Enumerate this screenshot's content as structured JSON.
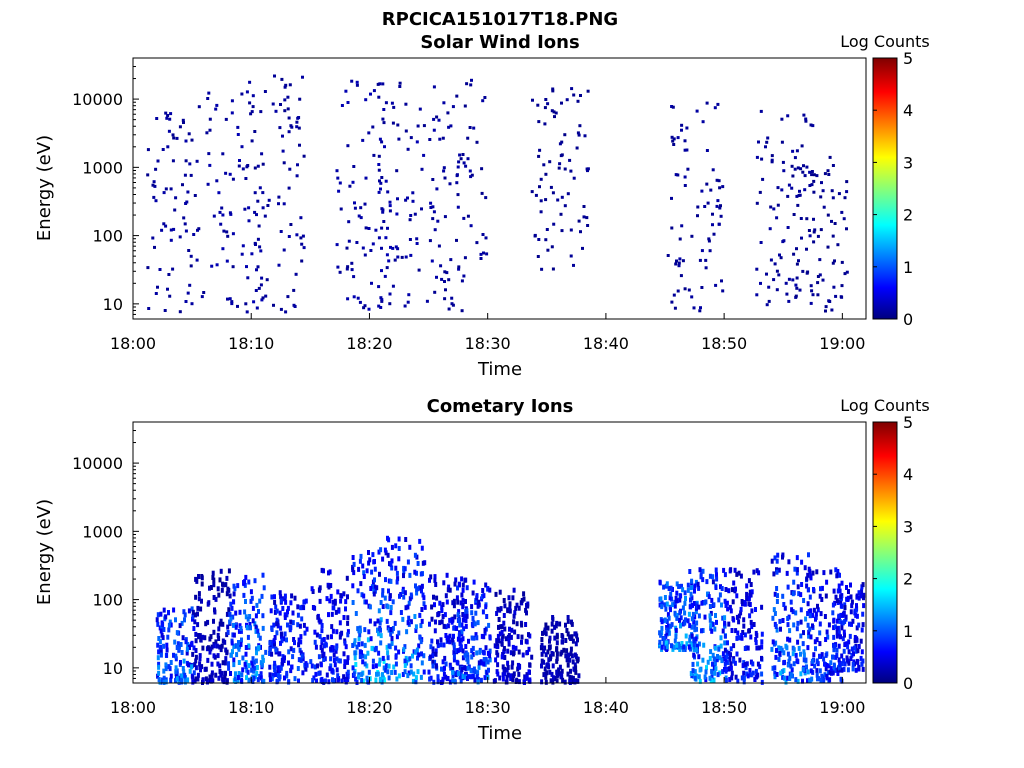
{
  "figure_title": "RPCICA151017T18.PNG",
  "chart_data": [
    {
      "type": "heatmap",
      "title": "Solar Wind Ions",
      "xlabel": "Time",
      "ylabel": "Energy (eV)",
      "x_range": [
        "18:00",
        "19:02"
      ],
      "x_ticks": [
        "18:00",
        "18:10",
        "18:20",
        "18:30",
        "18:40",
        "18:50",
        "19:00"
      ],
      "y_scale": "log",
      "y_range": [
        6,
        40000
      ],
      "y_ticks": [
        "10",
        "100",
        "1000",
        "10000"
      ],
      "colorbar": {
        "label": "Log Counts",
        "range": [
          0,
          5
        ],
        "ticks": [
          "0",
          "1",
          "2",
          "3",
          "4",
          "5"
        ],
        "colormap": "jet"
      },
      "grid": false,
      "data_description": "sparse scattered counts, mostly log count 0 (dark blue), 18:02–18:59, 6–30000 eV",
      "activity_clusters": [
        {
          "t_min": 3.5,
          "e_min": 8,
          "e_max": 9000,
          "level": 0.15
        },
        {
          "t_min": 8.5,
          "e_min": 8,
          "e_max": 20000,
          "level": 0.2
        },
        {
          "t_min": 12.0,
          "e_min": 8,
          "e_max": 25000,
          "level": 0.15
        },
        {
          "t_min": 19.5,
          "e_min": 8,
          "e_max": 20000,
          "level": 0.2
        },
        {
          "t_min": 23.0,
          "e_min": 8,
          "e_max": 20000,
          "level": 0.2
        },
        {
          "t_min": 27.5,
          "e_min": 8,
          "e_max": 20000,
          "level": 0.15
        },
        {
          "t_min": 36.0,
          "e_min": 30,
          "e_max": 15000,
          "level": 0.1
        },
        {
          "t_min": 47.5,
          "e_min": 8,
          "e_max": 10000,
          "level": 0.15
        },
        {
          "t_min": 55.0,
          "e_min": 8,
          "e_max": 9000,
          "level": 0.15
        },
        {
          "t_min": 58.0,
          "e_min": 8,
          "e_max": 1500,
          "level": 0.1
        }
      ]
    },
    {
      "type": "heatmap",
      "title": "Cometary Ions",
      "xlabel": "Time",
      "ylabel": "Energy (eV)",
      "x_range": [
        "18:00",
        "19:02"
      ],
      "x_ticks": [
        "18:00",
        "18:10",
        "18:20",
        "18:30",
        "18:40",
        "18:50",
        "19:00"
      ],
      "y_scale": "log",
      "y_range": [
        6,
        40000
      ],
      "y_ticks": [
        "10",
        "100",
        "1000",
        "10000"
      ],
      "colorbar": {
        "label": "Log Counts",
        "range": [
          0,
          5
        ],
        "ticks": [
          "0",
          "1",
          "2",
          "3",
          "4",
          "5"
        ],
        "colormap": "jet"
      },
      "grid": false,
      "data_description": "dense bursty columns at 6–1000 eV reaching log count ~1.5 (cyan), sparse points above",
      "activity_clusters": [
        {
          "t_min": 3.5,
          "e_min": 6,
          "e_max": 80,
          "level": 1.2
        },
        {
          "t_min": 6.5,
          "e_min": 6,
          "e_max": 300,
          "level": 0.4
        },
        {
          "t_min": 9.5,
          "e_min": 6,
          "e_max": 250,
          "level": 1.3
        },
        {
          "t_min": 13.0,
          "e_min": 6,
          "e_max": 150,
          "level": 0.9
        },
        {
          "t_min": 16.5,
          "e_min": 6,
          "e_max": 300,
          "level": 0.8
        },
        {
          "t_min": 20.0,
          "e_min": 6,
          "e_max": 600,
          "level": 1.5
        },
        {
          "t_min": 23.0,
          "e_min": 6,
          "e_max": 900,
          "level": 1.4
        },
        {
          "t_min": 26.5,
          "e_min": 6,
          "e_max": 300,
          "level": 0.8
        },
        {
          "t_min": 28.5,
          "e_min": 6,
          "e_max": 200,
          "level": 1.1
        },
        {
          "t_min": 32.0,
          "e_min": 6,
          "e_max": 150,
          "level": 0.5
        },
        {
          "t_min": 36.0,
          "e_min": 6,
          "e_max": 60,
          "level": 0.3
        },
        {
          "t_min": 46.0,
          "e_min": 20,
          "e_max": 200,
          "level": 1.3
        },
        {
          "t_min": 48.5,
          "e_min": 6,
          "e_max": 300,
          "level": 1.4
        },
        {
          "t_min": 51.5,
          "e_min": 6,
          "e_max": 300,
          "level": 0.8
        },
        {
          "t_min": 55.5,
          "e_min": 6,
          "e_max": 500,
          "level": 1.3
        },
        {
          "t_min": 58.5,
          "e_min": 6,
          "e_max": 300,
          "level": 1.0
        },
        {
          "t_min": 61.0,
          "e_min": 10,
          "e_max": 200,
          "level": 0.8
        }
      ]
    }
  ]
}
